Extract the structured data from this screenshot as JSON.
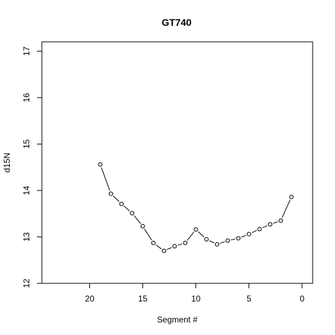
{
  "chart_data": {
    "type": "line",
    "title": "GT740",
    "xlabel": "Segment #",
    "ylabel": "d15N",
    "xlim": [
      24.5,
      -1
    ],
    "ylim": [
      12,
      17.2
    ],
    "x_reversed": true,
    "x_ticks": [
      20,
      15,
      10,
      5,
      0
    ],
    "y_ticks": [
      12,
      13,
      14,
      15,
      16,
      17
    ],
    "grid": false,
    "legend": "none",
    "series": [
      {
        "marker": "open-circle",
        "line_style": "solid-with-gaps",
        "color": "#000000",
        "x": [
          19,
          18,
          17,
          16,
          15,
          14,
          13,
          12,
          11,
          10,
          9,
          8,
          7,
          6,
          5,
          4,
          3,
          2,
          1
        ],
        "y": [
          14.56,
          13.93,
          13.71,
          13.51,
          13.23,
          12.87,
          12.7,
          12.8,
          12.87,
          13.16,
          12.95,
          12.84,
          12.92,
          12.97,
          13.06,
          13.17,
          13.27,
          13.35,
          13.86
        ]
      }
    ]
  }
}
